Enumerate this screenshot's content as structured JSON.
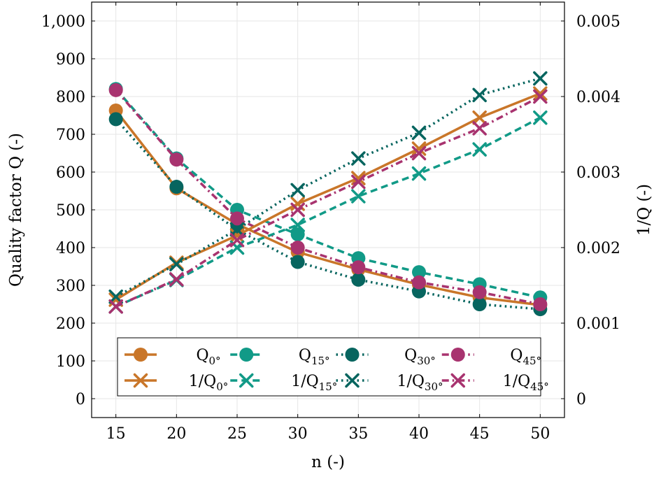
{
  "chart_data": {
    "type": "line",
    "x": [
      15,
      20,
      25,
      30,
      35,
      40,
      45,
      50
    ],
    "xlabel": "n (-)",
    "ylabel": "Quality factor Q (-)",
    "y2label": "1/Q (-)",
    "xlim": [
      13,
      52
    ],
    "ylim": [
      -50,
      1050
    ],
    "y2lim": [
      -0.00025,
      0.00525
    ],
    "x_ticks": [
      15,
      20,
      25,
      30,
      35,
      40,
      45,
      50
    ],
    "y_ticks": [
      0,
      100,
      200,
      300,
      400,
      500,
      600,
      700,
      800,
      900,
      1000
    ],
    "y_tick_labels": [
      "0",
      "100",
      "200",
      "300",
      "400",
      "500",
      "600",
      "700",
      "800",
      "900",
      "1,000"
    ],
    "y2_ticks": [
      0,
      0.001,
      0.002,
      0.003,
      0.004,
      0.005
    ],
    "y2_tick_labels": [
      "0",
      "0.001",
      "0.002",
      "0.003",
      "0.004",
      "0.005"
    ],
    "grid": true,
    "legend_position": "bottom-center",
    "series": [
      {
        "name": "Q",
        "sub": "0°",
        "axis": "left",
        "marker": "circle",
        "dash": "solid",
        "color": "#C97629",
        "values": [
          763,
          557,
          462,
          388,
          342,
          302,
          268,
          248
        ]
      },
      {
        "name": "Q",
        "sub": "15°",
        "axis": "left",
        "marker": "circle",
        "dash": "dashed",
        "color": "#119A87",
        "values": [
          820,
          636,
          500,
          435,
          372,
          335,
          303,
          268
        ]
      },
      {
        "name": "Q",
        "sub": "30°",
        "axis": "left",
        "marker": "circle",
        "dash": "dotted",
        "color": "#07655F",
        "values": [
          740,
          561,
          447,
          362,
          315,
          284,
          250,
          237
        ]
      },
      {
        "name": "Q",
        "sub": "45°",
        "axis": "left",
        "marker": "circle",
        "dash": "dashdotted",
        "color": "#A8336F",
        "values": [
          817,
          633,
          477,
          400,
          348,
          308,
          282,
          250
        ]
      },
      {
        "name": "1/Q",
        "sub": "0°",
        "axis": "right",
        "marker": "cross",
        "dash": "solid",
        "color": "#C97629",
        "values": [
          0.00131,
          0.0018,
          0.00216,
          0.00258,
          0.00292,
          0.00331,
          0.00372,
          0.00404
        ]
      },
      {
        "name": "1/Q",
        "sub": "15°",
        "axis": "right",
        "marker": "cross",
        "dash": "dashed",
        "color": "#119A87",
        "values": [
          0.00122,
          0.00157,
          0.002,
          0.0023,
          0.00268,
          0.00298,
          0.0033,
          0.00372
        ]
      },
      {
        "name": "1/Q",
        "sub": "30°",
        "axis": "right",
        "marker": "cross",
        "dash": "dotted",
        "color": "#07655F",
        "values": [
          0.00135,
          0.00178,
          0.00224,
          0.00276,
          0.00318,
          0.00352,
          0.00402,
          0.00424
        ]
      },
      {
        "name": "1/Q",
        "sub": "45°",
        "axis": "right",
        "marker": "cross",
        "dash": "dashdotted",
        "color": "#A8336F",
        "values": [
          0.00122,
          0.00158,
          0.0021,
          0.0025,
          0.00287,
          0.00325,
          0.00358,
          0.004
        ]
      }
    ]
  }
}
